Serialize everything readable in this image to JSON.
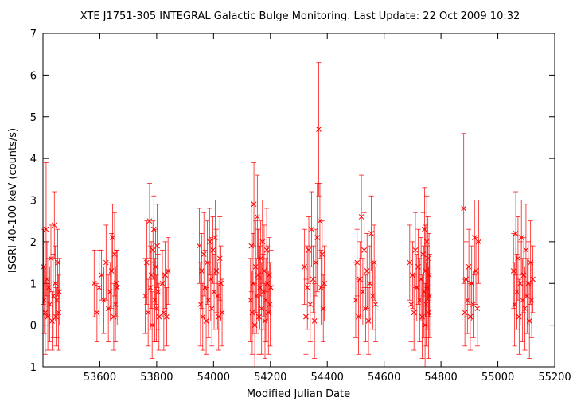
{
  "chart_data": {
    "type": "scatter",
    "title": "XTE J1751-305   INTEGRAL Galactic Bulge Monitoring.  Last Update: 22 Oct 2009 10:32",
    "xlabel": "Modified Julian Date",
    "ylabel": "ISGRI 40-100 keV (counts/s)",
    "xlim": [
      53400,
      55200
    ],
    "ylim": [
      -1,
      7
    ],
    "x_ticks": [
      53600,
      53800,
      54000,
      54200,
      54400,
      54600,
      54800,
      55000,
      55200
    ],
    "y_ticks": [
      -1,
      0,
      1,
      2,
      3,
      4,
      5,
      6,
      7
    ],
    "marker": "x",
    "error_bars": true,
    "grid": false,
    "color": "#ff0000",
    "series": [
      {
        "points": [
          {
            "x": 53402,
            "y": 1.4,
            "err": 0.9
          },
          {
            "x": 53405,
            "y": 0.6,
            "err": 0.8
          },
          {
            "x": 53408,
            "y": 0.3,
            "err": 1.0
          },
          {
            "x": 53411,
            "y": 2.3,
            "err": 1.6
          },
          {
            "x": 53414,
            "y": 1.1,
            "err": 0.9
          },
          {
            "x": 53417,
            "y": 0.2,
            "err": 0.8
          },
          {
            "x": 53420,
            "y": 0.9,
            "err": 0.7
          },
          {
            "x": 53424,
            "y": 0.5,
            "err": 0.9
          },
          {
            "x": 53428,
            "y": 1.6,
            "err": 0.8
          },
          {
            "x": 53432,
            "y": 0.1,
            "err": 0.7
          },
          {
            "x": 53436,
            "y": 0.7,
            "err": 1.0
          },
          {
            "x": 53440,
            "y": 2.4,
            "err": 0.8
          },
          {
            "x": 53443,
            "y": 1.0,
            "err": 0.9
          },
          {
            "x": 53446,
            "y": 0.2,
            "err": 0.7
          },
          {
            "x": 53449,
            "y": 0.6,
            "err": 0.9
          },
          {
            "x": 53452,
            "y": 1.5,
            "err": 0.8
          },
          {
            "x": 53455,
            "y": 0.3,
            "err": 0.9
          },
          {
            "x": 53458,
            "y": 0.8,
            "err": 0.8
          },
          {
            "x": 53580,
            "y": 1.0,
            "err": 0.8
          },
          {
            "x": 53590,
            "y": 0.3,
            "err": 0.7
          },
          {
            "x": 53598,
            "y": 0.9,
            "err": 0.9
          },
          {
            "x": 53606,
            "y": 1.2,
            "err": 0.6
          },
          {
            "x": 53614,
            "y": 0.6,
            "err": 0.8
          },
          {
            "x": 53622,
            "y": 1.5,
            "err": 0.9
          },
          {
            "x": 53630,
            "y": 0.4,
            "err": 0.8
          },
          {
            "x": 53636,
            "y": 0.8,
            "err": 0.7
          },
          {
            "x": 53641,
            "y": 1.3,
            "err": 0.9
          },
          {
            "x": 53645,
            "y": 2.1,
            "err": 0.8
          },
          {
            "x": 53649,
            "y": 0.2,
            "err": 0.8
          },
          {
            "x": 53652,
            "y": 1.7,
            "err": 1.0
          },
          {
            "x": 53655,
            "y": 0.5,
            "err": 0.9
          },
          {
            "x": 53658,
            "y": 1.0,
            "err": 0.8
          },
          {
            "x": 53661,
            "y": 0.9,
            "err": 0.9
          },
          {
            "x": 53760,
            "y": 0.7,
            "err": 0.9
          },
          {
            "x": 53765,
            "y": 1.5,
            "err": 1.0
          },
          {
            "x": 53770,
            "y": 0.3,
            "err": 0.8
          },
          {
            "x": 53775,
            "y": 2.5,
            "err": 0.9
          },
          {
            "x": 53778,
            "y": 0.9,
            "err": 1.0
          },
          {
            "x": 53781,
            "y": 1.2,
            "err": 0.8
          },
          {
            "x": 53784,
            "y": 0.0,
            "err": 0.8
          },
          {
            "x": 53787,
            "y": 1.8,
            "err": 0.7
          },
          {
            "x": 53790,
            "y": 2.3,
            "err": 0.8
          },
          {
            "x": 53793,
            "y": 0.6,
            "err": 1.0
          },
          {
            "x": 53796,
            "y": 1.4,
            "err": 0.9
          },
          {
            "x": 53799,
            "y": 0.4,
            "err": 0.8
          },
          {
            "x": 53802,
            "y": 1.9,
            "err": 1.0
          },
          {
            "x": 53805,
            "y": 0.8,
            "err": 0.9
          },
          {
            "x": 53808,
            "y": 0.2,
            "err": 0.8
          },
          {
            "x": 53820,
            "y": 1.0,
            "err": 0.8
          },
          {
            "x": 53825,
            "y": 0.3,
            "err": 0.9
          },
          {
            "x": 53830,
            "y": 1.2,
            "err": 0.8
          },
          {
            "x": 53835,
            "y": 0.2,
            "err": 0.7
          },
          {
            "x": 53840,
            "y": 1.3,
            "err": 0.8
          },
          {
            "x": 53950,
            "y": 1.9,
            "err": 0.9
          },
          {
            "x": 53954,
            "y": 0.5,
            "err": 1.0
          },
          {
            "x": 53958,
            "y": 1.3,
            "err": 0.9
          },
          {
            "x": 53962,
            "y": 0.2,
            "err": 0.8
          },
          {
            "x": 53966,
            "y": 1.7,
            "err": 1.0
          },
          {
            "x": 53970,
            "y": 0.9,
            "err": 0.9
          },
          {
            "x": 53974,
            "y": 0.1,
            "err": 0.8
          },
          {
            "x": 53978,
            "y": 1.5,
            "err": 1.0
          },
          {
            "x": 53982,
            "y": 0.6,
            "err": 0.9
          },
          {
            "x": 53986,
            "y": 2.0,
            "err": 0.8
          },
          {
            "x": 53990,
            "y": 1.1,
            "err": 1.0
          },
          {
            "x": 53994,
            "y": 0.4,
            "err": 0.9
          },
          {
            "x": 53998,
            "y": 1.8,
            "err": 0.8
          },
          {
            "x": 54002,
            "y": 0.8,
            "err": 0.9
          },
          {
            "x": 54006,
            "y": 2.1,
            "err": 0.9
          },
          {
            "x": 54010,
            "y": 1.3,
            "err": 1.0
          },
          {
            "x": 54014,
            "y": 0.7,
            "err": 0.8
          },
          {
            "x": 54018,
            "y": 0.2,
            "err": 0.8
          },
          {
            "x": 54022,
            "y": 1.6,
            "err": 1.0
          },
          {
            "x": 54026,
            "y": 1.0,
            "err": 0.9
          },
          {
            "x": 54030,
            "y": 0.3,
            "err": 0.8
          },
          {
            "x": 54130,
            "y": 0.6,
            "err": 1.0
          },
          {
            "x": 54133,
            "y": 1.9,
            "err": 1.1
          },
          {
            "x": 54136,
            "y": 0.3,
            "err": 1.0
          },
          {
            "x": 54139,
            "y": 1.0,
            "err": 1.2
          },
          {
            "x": 54142,
            "y": 2.9,
            "err": 1.0
          },
          {
            "x": 54145,
            "y": 0.0,
            "err": 1.0
          },
          {
            "x": 54148,
            "y": 1.4,
            "err": 1.1
          },
          {
            "x": 54151,
            "y": 0.7,
            "err": 0.9
          },
          {
            "x": 54154,
            "y": 2.6,
            "err": 1.0
          },
          {
            "x": 54157,
            "y": 1.2,
            "err": 1.1
          },
          {
            "x": 54160,
            "y": 0.2,
            "err": 0.9
          },
          {
            "x": 54163,
            "y": 0.9,
            "err": 1.0
          },
          {
            "x": 54166,
            "y": 1.6,
            "err": 0.9
          },
          {
            "x": 54169,
            "y": 0.4,
            "err": 1.1
          },
          {
            "x": 54172,
            "y": 2.0,
            "err": 1.0
          },
          {
            "x": 54175,
            "y": 0.8,
            "err": 0.9
          },
          {
            "x": 54178,
            "y": 1.3,
            "err": 1.1
          },
          {
            "x": 54181,
            "y": 0.1,
            "err": 0.9
          },
          {
            "x": 54184,
            "y": 0.6,
            "err": 1.0
          },
          {
            "x": 54187,
            "y": 1.8,
            "err": 1.0
          },
          {
            "x": 54190,
            "y": 1.0,
            "err": 0.9
          },
          {
            "x": 54193,
            "y": 0.3,
            "err": 1.0
          },
          {
            "x": 54196,
            "y": 1.2,
            "err": 0.9
          },
          {
            "x": 54199,
            "y": 0.5,
            "err": 1.0
          },
          {
            "x": 54202,
            "y": 0.9,
            "err": 0.9
          },
          {
            "x": 54320,
            "y": 1.4,
            "err": 0.9
          },
          {
            "x": 54325,
            "y": 0.2,
            "err": 0.9
          },
          {
            "x": 54330,
            "y": 0.9,
            "err": 1.0
          },
          {
            "x": 54335,
            "y": 1.8,
            "err": 0.8
          },
          {
            "x": 54340,
            "y": 0.5,
            "err": 0.9
          },
          {
            "x": 54345,
            "y": 2.3,
            "err": 0.9
          },
          {
            "x": 54350,
            "y": 1.1,
            "err": 0.8
          },
          {
            "x": 54355,
            "y": 0.1,
            "err": 0.9
          },
          {
            "x": 54360,
            "y": 1.5,
            "err": 0.8
          },
          {
            "x": 54365,
            "y": 2.1,
            "err": 1.3
          },
          {
            "x": 54370,
            "y": 4.7,
            "err": 1.6
          },
          {
            "x": 54374,
            "y": 2.5,
            "err": 0.9
          },
          {
            "x": 54378,
            "y": 0.9,
            "err": 0.9
          },
          {
            "x": 54382,
            "y": 1.7,
            "err": 0.8
          },
          {
            "x": 54386,
            "y": 0.4,
            "err": 0.8
          },
          {
            "x": 54390,
            "y": 1.0,
            "err": 0.9
          },
          {
            "x": 54500,
            "y": 0.6,
            "err": 0.9
          },
          {
            "x": 54505,
            "y": 1.5,
            "err": 0.8
          },
          {
            "x": 54510,
            "y": 0.2,
            "err": 0.9
          },
          {
            "x": 54515,
            "y": 1.1,
            "err": 0.9
          },
          {
            "x": 54520,
            "y": 2.6,
            "err": 1.0
          },
          {
            "x": 54525,
            "y": 0.8,
            "err": 0.8
          },
          {
            "x": 54530,
            "y": 1.8,
            "err": 0.9
          },
          {
            "x": 54535,
            "y": 0.4,
            "err": 0.8
          },
          {
            "x": 54540,
            "y": 1.3,
            "err": 0.9
          },
          {
            "x": 54545,
            "y": 0.1,
            "err": 0.8
          },
          {
            "x": 54550,
            "y": 1.0,
            "err": 0.9
          },
          {
            "x": 54555,
            "y": 2.2,
            "err": 0.9
          },
          {
            "x": 54560,
            "y": 0.7,
            "err": 0.8
          },
          {
            "x": 54565,
            "y": 1.5,
            "err": 0.9
          },
          {
            "x": 54570,
            "y": 0.5,
            "err": 0.9
          },
          {
            "x": 54690,
            "y": 1.5,
            "err": 0.9
          },
          {
            "x": 54695,
            "y": 0.5,
            "err": 0.9
          },
          {
            "x": 54700,
            "y": 1.2,
            "err": 0.8
          },
          {
            "x": 54705,
            "y": 0.3,
            "err": 0.9
          },
          {
            "x": 54710,
            "y": 1.8,
            "err": 0.9
          },
          {
            "x": 54715,
            "y": 0.9,
            "err": 0.8
          },
          {
            "x": 54720,
            "y": 1.4,
            "err": 0.9
          },
          {
            "x": 54725,
            "y": 0.6,
            "err": 1.0
          },
          {
            "x": 54730,
            "y": 1.1,
            "err": 1.0
          },
          {
            "x": 54734,
            "y": 0.2,
            "err": 1.0
          },
          {
            "x": 54737,
            "y": 1.7,
            "err": 1.0
          },
          {
            "x": 54740,
            "y": 0.8,
            "err": 1.1
          },
          {
            "x": 54742,
            "y": 2.3,
            "err": 1.0
          },
          {
            "x": 54744,
            "y": 0.0,
            "err": 1.0
          },
          {
            "x": 54746,
            "y": 1.3,
            "err": 1.1
          },
          {
            "x": 54748,
            "y": 0.5,
            "err": 1.0
          },
          {
            "x": 54750,
            "y": 2.0,
            "err": 1.1
          },
          {
            "x": 54752,
            "y": 0.9,
            "err": 1.0
          },
          {
            "x": 54754,
            "y": 1.6,
            "err": 1.0
          },
          {
            "x": 54756,
            "y": 0.3,
            "err": 1.1
          },
          {
            "x": 54758,
            "y": 1.2,
            "err": 1.0
          },
          {
            "x": 54760,
            "y": 0.7,
            "err": 1.0
          },
          {
            "x": 54880,
            "y": 2.8,
            "err": 1.8
          },
          {
            "x": 54884,
            "y": 0.3,
            "err": 0.8
          },
          {
            "x": 54888,
            "y": 1.1,
            "err": 0.9
          },
          {
            "x": 54893,
            "y": 0.6,
            "err": 0.8
          },
          {
            "x": 54898,
            "y": 1.4,
            "err": 0.9
          },
          {
            "x": 54903,
            "y": 0.2,
            "err": 0.8
          },
          {
            "x": 54908,
            "y": 1.0,
            "err": 0.9
          },
          {
            "x": 54913,
            "y": 0.5,
            "err": 0.8
          },
          {
            "x": 54918,
            "y": 2.1,
            "err": 0.9
          },
          {
            "x": 54923,
            "y": 1.3,
            "err": 0.8
          },
          {
            "x": 54928,
            "y": 0.4,
            "err": 0.9
          },
          {
            "x": 54933,
            "y": 2.0,
            "err": 1.0
          },
          {
            "x": 55055,
            "y": 1.3,
            "err": 0.9
          },
          {
            "x": 55059,
            "y": 0.5,
            "err": 1.0
          },
          {
            "x": 55063,
            "y": 2.2,
            "err": 1.0
          },
          {
            "x": 55067,
            "y": 0.8,
            "err": 0.9
          },
          {
            "x": 55071,
            "y": 1.6,
            "err": 1.0
          },
          {
            "x": 55075,
            "y": 0.2,
            "err": 0.9
          },
          {
            "x": 55079,
            "y": 1.0,
            "err": 1.0
          },
          {
            "x": 55083,
            "y": 2.1,
            "err": 0.9
          },
          {
            "x": 55087,
            "y": 0.6,
            "err": 1.0
          },
          {
            "x": 55091,
            "y": 1.2,
            "err": 0.9
          },
          {
            "x": 55095,
            "y": 0.4,
            "err": 1.0
          },
          {
            "x": 55099,
            "y": 1.8,
            "err": 1.1
          },
          {
            "x": 55103,
            "y": 0.7,
            "err": 0.9
          },
          {
            "x": 55107,
            "y": 1.0,
            "err": 1.0
          },
          {
            "x": 55111,
            "y": 0.1,
            "err": 0.9
          },
          {
            "x": 55115,
            "y": 1.5,
            "err": 1.0
          },
          {
            "x": 55119,
            "y": 0.6,
            "err": 0.9
          },
          {
            "x": 55123,
            "y": 1.1,
            "err": 0.8
          }
        ]
      }
    ]
  }
}
